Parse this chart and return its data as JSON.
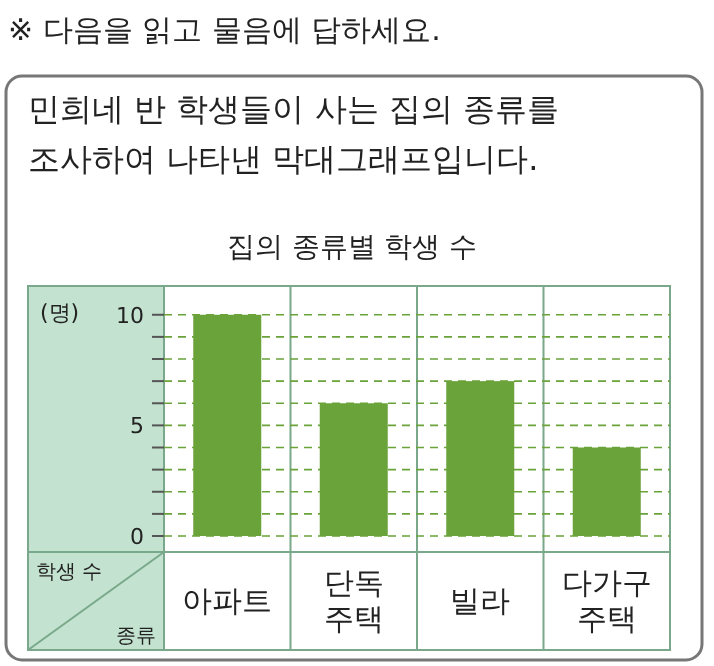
{
  "chart_data": {
    "type": "bar",
    "title": "집의 종류별 학생 수",
    "annotations": [
      "※ 다음을 읽고 물음에 답하세요.",
      "민희네 반 학생들이 사는 집의 종류를 조사하여 나타낸 막대그래프입니다.",
      "(명)"
    ],
    "ylabel": "학생 수",
    "xlabel": "종류",
    "categories": [
      "아파트",
      "단독\n주택",
      "빌라",
      "다가구\n주택"
    ],
    "values": [
      10,
      6,
      7,
      4
    ],
    "color": "#6aa33a",
    "ylim": [
      0,
      11.3
    ],
    "yticks": [
      0,
      {
        "value": 1,
        "label": null
      },
      {
        "value": 2,
        "label": null
      },
      {
        "value": 3,
        "label": null
      },
      {
        "value": 4,
        "label": null
      },
      5,
      {
        "value": 6,
        "label": null
      },
      {
        "value": 7,
        "label": null
      },
      {
        "value": 8,
        "label": null
      },
      {
        "value": 9,
        "label": null
      },
      10
    ],
    "grid": "y"
  }
}
